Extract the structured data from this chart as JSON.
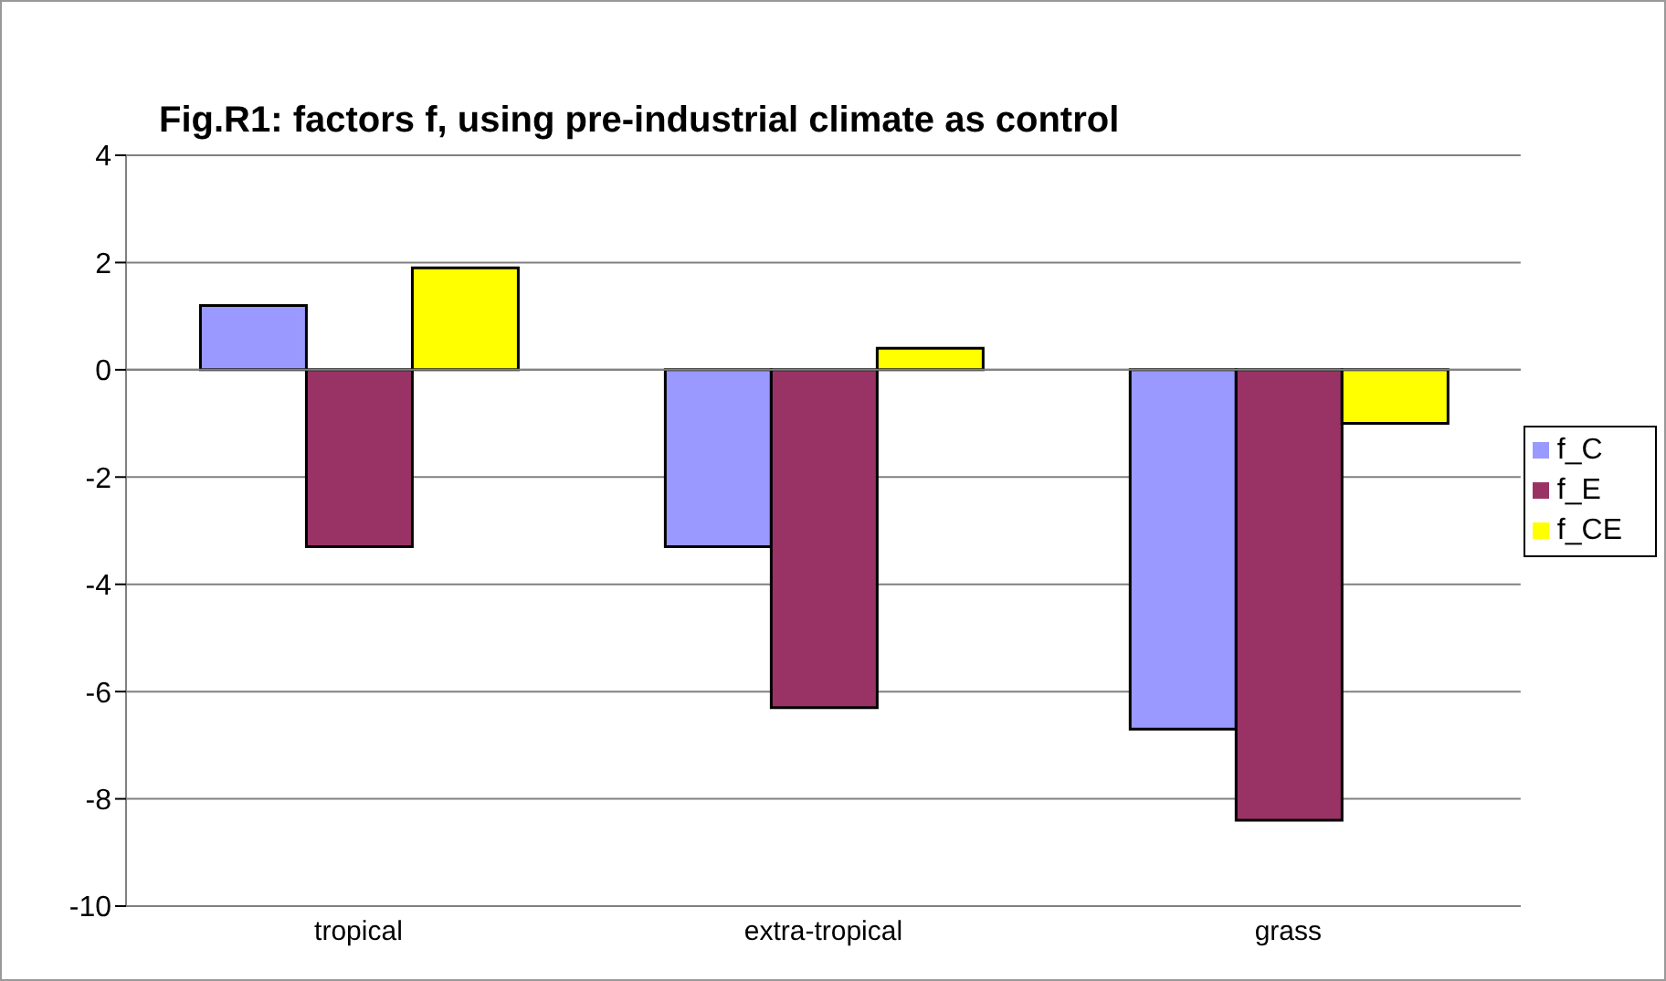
{
  "chart_data": {
    "type": "bar",
    "title": "Fig.R1: factors f, using pre-industrial climate as control",
    "categories": [
      "tropical",
      "extra-tropical",
      "grass"
    ],
    "series": [
      {
        "name": "f_C",
        "color": "#9999ff",
        "values": [
          1.2,
          -3.3,
          -6.7
        ]
      },
      {
        "name": "f_E",
        "color": "#993366",
        "values": [
          -3.3,
          -6.3,
          -8.4
        ]
      },
      {
        "name": "f_CE",
        "color": "#ffff00",
        "values": [
          1.9,
          0.4,
          -1.0
        ]
      }
    ],
    "ylim": [
      -10,
      4
    ],
    "yticks": [
      -10,
      -8,
      -6,
      -4,
      -2,
      0,
      2,
      4
    ],
    "grid": "y",
    "legend": "right"
  }
}
